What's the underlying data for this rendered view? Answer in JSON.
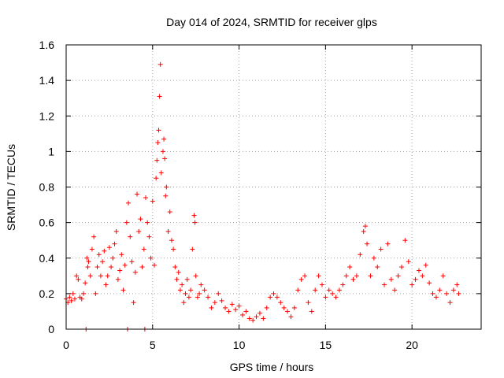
{
  "chart_data": {
    "type": "scatter",
    "title": "Day 014 of 2024, SRMTID for receiver glps",
    "xlabel": "GPS time / hours",
    "ylabel": "SRMTID / TECUs",
    "xlim": [
      0,
      24
    ],
    "ylim": [
      0,
      1.6
    ],
    "xticks": [
      0,
      5,
      10,
      15,
      20
    ],
    "yticks": [
      0,
      0.2,
      0.4,
      0.6,
      0.8,
      1,
      1.2,
      1.4,
      1.6
    ],
    "xtick_labels": [
      "0",
      "5",
      "10",
      "15",
      "20"
    ],
    "ytick_labels": [
      "0",
      "0.2",
      "0.4",
      "0.6",
      "0.8",
      "1",
      "1.2",
      "1.4",
      "1.6"
    ],
    "grid": true,
    "marker": "+",
    "marker_color": "#ff0000",
    "series": [
      {
        "name": "SRMTID",
        "points": [
          [
            0.0,
            0.17
          ],
          [
            0.1,
            0.15
          ],
          [
            0.2,
            0.18
          ],
          [
            0.3,
            0.16
          ],
          [
            0.4,
            0.2
          ],
          [
            0.5,
            0.17
          ],
          [
            0.6,
            0.3
          ],
          [
            0.7,
            0.28
          ],
          [
            0.8,
            0.18
          ],
          [
            0.9,
            0.17
          ],
          [
            1.0,
            0.2
          ],
          [
            1.1,
            0.26
          ],
          [
            1.15,
            0.0
          ],
          [
            1.2,
            0.4
          ],
          [
            1.25,
            0.35
          ],
          [
            1.3,
            0.38
          ],
          [
            1.4,
            0.3
          ],
          [
            1.5,
            0.45
          ],
          [
            1.6,
            0.52
          ],
          [
            1.7,
            0.2
          ],
          [
            1.8,
            0.35
          ],
          [
            1.9,
            0.42
          ],
          [
            2.0,
            0.3
          ],
          [
            2.1,
            0.38
          ],
          [
            2.2,
            0.44
          ],
          [
            2.3,
            0.25
          ],
          [
            2.4,
            0.3
          ],
          [
            2.5,
            0.46
          ],
          [
            2.6,
            0.35
          ],
          [
            2.7,
            0.4
          ],
          [
            2.8,
            0.48
          ],
          [
            2.9,
            0.55
          ],
          [
            3.0,
            0.28
          ],
          [
            3.1,
            0.33
          ],
          [
            3.2,
            0.42
          ],
          [
            3.3,
            0.22
          ],
          [
            3.4,
            0.36
          ],
          [
            3.5,
            0.6
          ],
          [
            3.55,
            0.0
          ],
          [
            3.6,
            0.71
          ],
          [
            3.7,
            0.52
          ],
          [
            3.8,
            0.38
          ],
          [
            3.9,
            0.15
          ],
          [
            4.0,
            0.32
          ],
          [
            4.1,
            0.76
          ],
          [
            4.2,
            0.55
          ],
          [
            4.3,
            0.62
          ],
          [
            4.4,
            0.35
          ],
          [
            4.5,
            0.45
          ],
          [
            4.55,
            0.0
          ],
          [
            4.6,
            0.74
          ],
          [
            4.7,
            0.6
          ],
          [
            4.8,
            0.52
          ],
          [
            4.9,
            0.4
          ],
          [
            5.0,
            0.72
          ],
          [
            5.1,
            0.36
          ],
          [
            5.2,
            0.85
          ],
          [
            5.25,
            0.95
          ],
          [
            5.3,
            1.05
          ],
          [
            5.35,
            1.12
          ],
          [
            5.4,
            1.31
          ],
          [
            5.45,
            1.49
          ],
          [
            5.5,
            0.88
          ],
          [
            5.6,
            1.0
          ],
          [
            5.65,
            1.07
          ],
          [
            5.7,
            0.96
          ],
          [
            5.75,
            0.75
          ],
          [
            5.8,
            0.8
          ],
          [
            5.9,
            0.55
          ],
          [
            6.0,
            0.66
          ],
          [
            6.1,
            0.5
          ],
          [
            6.2,
            0.45
          ],
          [
            6.3,
            0.35
          ],
          [
            6.4,
            0.28
          ],
          [
            6.5,
            0.32
          ],
          [
            6.6,
            0.22
          ],
          [
            6.7,
            0.25
          ],
          [
            6.8,
            0.15
          ],
          [
            6.9,
            0.2
          ],
          [
            7.0,
            0.28
          ],
          [
            7.1,
            0.18
          ],
          [
            7.2,
            0.22
          ],
          [
            7.3,
            0.45
          ],
          [
            7.4,
            0.64
          ],
          [
            7.45,
            0.6
          ],
          [
            7.5,
            0.3
          ],
          [
            7.6,
            0.18
          ],
          [
            7.7,
            0.2
          ],
          [
            7.8,
            0.25
          ],
          [
            8.0,
            0.22
          ],
          [
            8.2,
            0.18
          ],
          [
            8.4,
            0.12
          ],
          [
            8.6,
            0.15
          ],
          [
            8.8,
            0.2
          ],
          [
            9.0,
            0.16
          ],
          [
            9.2,
            0.12
          ],
          [
            9.4,
            0.1
          ],
          [
            9.6,
            0.14
          ],
          [
            9.8,
            0.11
          ],
          [
            10.0,
            0.13
          ],
          [
            10.2,
            0.08
          ],
          [
            10.4,
            0.1
          ],
          [
            10.6,
            0.06
          ],
          [
            10.8,
            0.05
          ],
          [
            11.0,
            0.07
          ],
          [
            11.2,
            0.09
          ],
          [
            11.4,
            0.06
          ],
          [
            11.6,
            0.12
          ],
          [
            11.8,
            0.18
          ],
          [
            12.0,
            0.2
          ],
          [
            12.2,
            0.18
          ],
          [
            12.4,
            0.15
          ],
          [
            12.6,
            0.12
          ],
          [
            12.8,
            0.1
          ],
          [
            13.0,
            0.07
          ],
          [
            13.2,
            0.12
          ],
          [
            13.4,
            0.22
          ],
          [
            13.6,
            0.28
          ],
          [
            13.8,
            0.3
          ],
          [
            14.0,
            0.15
          ],
          [
            14.2,
            0.1
          ],
          [
            14.4,
            0.22
          ],
          [
            14.6,
            0.3
          ],
          [
            14.8,
            0.25
          ],
          [
            15.0,
            0.18
          ],
          [
            15.2,
            0.22
          ],
          [
            15.4,
            0.2
          ],
          [
            15.6,
            0.18
          ],
          [
            15.8,
            0.22
          ],
          [
            16.0,
            0.25
          ],
          [
            16.2,
            0.3
          ],
          [
            16.4,
            0.35
          ],
          [
            16.6,
            0.28
          ],
          [
            16.8,
            0.3
          ],
          [
            17.0,
            0.42
          ],
          [
            17.2,
            0.55
          ],
          [
            17.3,
            0.58
          ],
          [
            17.4,
            0.48
          ],
          [
            17.6,
            0.3
          ],
          [
            17.8,
            0.4
          ],
          [
            18.0,
            0.35
          ],
          [
            18.2,
            0.45
          ],
          [
            18.4,
            0.25
          ],
          [
            18.6,
            0.48
          ],
          [
            18.8,
            0.28
          ],
          [
            19.0,
            0.22
          ],
          [
            19.2,
            0.3
          ],
          [
            19.4,
            0.35
          ],
          [
            19.6,
            0.5
          ],
          [
            19.8,
            0.38
          ],
          [
            20.0,
            0.25
          ],
          [
            20.2,
            0.28
          ],
          [
            20.4,
            0.33
          ],
          [
            20.6,
            0.3
          ],
          [
            20.8,
            0.36
          ],
          [
            21.0,
            0.26
          ],
          [
            21.2,
            0.2
          ],
          [
            21.4,
            0.18
          ],
          [
            21.6,
            0.22
          ],
          [
            21.8,
            0.3
          ],
          [
            22.0,
            0.2
          ],
          [
            22.2,
            0.15
          ],
          [
            22.4,
            0.22
          ],
          [
            22.6,
            0.25
          ],
          [
            22.7,
            0.2
          ]
        ]
      }
    ]
  }
}
